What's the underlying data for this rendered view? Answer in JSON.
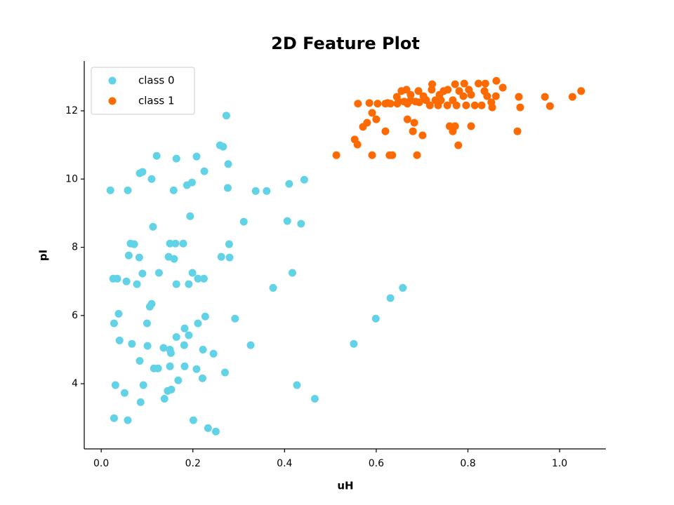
{
  "chart_data": {
    "type": "scatter",
    "title": "2D Feature Plot",
    "x_label": "uH",
    "y_label": "pI",
    "xlim": [
      -0.037,
      1.101
    ],
    "ylim": [
      2.09,
      13.46
    ],
    "xticks": [
      {
        "value": 0,
        "label": "0.0"
      },
      0.2,
      0.4,
      0.6,
      0.8,
      {
        "value": 1,
        "label": "1.0"
      }
    ],
    "yticks": [
      4,
      6,
      8,
      10,
      12
    ],
    "grid": false,
    "legend": "upper left",
    "series": [
      {
        "name": "class 0",
        "color": "#62d2e6",
        "x": [
          0.02,
          0.058,
          0.121,
          0.164,
          0.208,
          0.273,
          0.259,
          0.266,
          0.084,
          0.09,
          0.11,
          0.225,
          0.277,
          0.198,
          0.187,
          0.158,
          0.276,
          0.337,
          0.361,
          0.41,
          0.443,
          0.194,
          0.113,
          0.311,
          0.406,
          0.436,
          0.064,
          0.072,
          0.15,
          0.162,
          0.179,
          0.279,
          0.06,
          0.083,
          0.147,
          0.159,
          0.262,
          0.28,
          0.09,
          0.126,
          0.199,
          0.417,
          0.026,
          0.035,
          0.055,
          0.078,
          0.164,
          0.191,
          0.211,
          0.224,
          0.375,
          0.658,
          0.106,
          0.11,
          0.631,
          0.038,
          0.227,
          0.292,
          0.599,
          0.028,
          0.1,
          0.211,
          0.182,
          0.191,
          0.164,
          0.04,
          0.067,
          0.181,
          0.326,
          0.551,
          0.101,
          0.136,
          0.15,
          0.152,
          0.222,
          0.245,
          0.084,
          0.115,
          0.124,
          0.15,
          0.182,
          0.208,
          0.27,
          0.221,
          0.168,
          0.031,
          0.092,
          0.427,
          0.145,
          0.153,
          0.051,
          0.138,
          0.466,
          0.086,
          0.028,
          0.058,
          0.201,
          0.233,
          0.25
        ],
        "values": [
          9.67,
          9.67,
          10.68,
          10.6,
          10.66,
          11.86,
          10.99,
          10.95,
          10.17,
          10.21,
          10.0,
          10.23,
          10.44,
          9.9,
          9.82,
          9.67,
          9.74,
          9.65,
          9.65,
          9.86,
          9.98,
          8.91,
          8.6,
          8.75,
          8.77,
          8.69,
          8.11,
          8.09,
          8.11,
          8.11,
          8.11,
          8.09,
          7.76,
          7.7,
          7.72,
          7.66,
          7.72,
          7.7,
          7.23,
          7.25,
          7.25,
          7.25,
          7.08,
          7.08,
          7.0,
          6.92,
          6.92,
          6.92,
          7.08,
          7.08,
          6.81,
          6.81,
          6.26,
          6.34,
          6.51,
          6.05,
          5.97,
          5.91,
          5.91,
          5.77,
          5.77,
          5.77,
          5.62,
          5.42,
          5.37,
          5.27,
          5.17,
          5.13,
          5.13,
          5.17,
          5.11,
          5.05,
          5.0,
          4.9,
          5.0,
          4.88,
          4.67,
          4.45,
          4.45,
          4.51,
          4.51,
          4.43,
          4.33,
          4.16,
          4.1,
          3.96,
          3.96,
          3.96,
          3.79,
          3.83,
          3.73,
          3.56,
          3.56,
          3.46,
          2.99,
          2.93,
          2.93,
          2.7,
          2.6
        ]
      },
      {
        "name": "class 1",
        "color": "#ff6a00",
        "x": [
          0.513,
          0.559,
          0.553,
          0.591,
          0.629,
          0.635,
          0.689,
          0.779,
          0.571,
          0.58,
          0.591,
          0.6,
          0.62,
          0.668,
          0.683,
          0.68,
          0.701,
          0.76,
          0.767,
          0.772,
          0.807,
          0.908,
          0.56,
          0.585,
          0.603,
          0.62,
          0.625,
          0.646,
          0.668,
          0.694,
          0.717,
          0.735,
          0.755,
          0.775,
          0.796,
          0.815,
          0.83,
          0.853,
          0.914,
          0.979,
          0.645,
          0.655,
          0.666,
          0.675,
          0.692,
          0.703,
          0.721,
          0.722,
          0.738,
          0.747,
          0.756,
          0.781,
          0.79,
          0.802,
          0.807,
          0.823,
          0.838,
          0.836,
          0.842,
          0.861,
          0.862,
          0.876,
          0.911,
          0.968,
          1.028,
          1.047,
          0.792,
          0.772,
          0.686,
          0.661,
          0.709,
          0.729,
          0.767,
          0.631,
          0.741,
          0.649,
          0.675,
          0.851
        ],
        "values": [
          10.7,
          11.01,
          11.16,
          10.7,
          10.7,
          10.7,
          10.7,
          10.99,
          11.53,
          11.65,
          11.94,
          11.75,
          11.4,
          11.75,
          11.65,
          11.4,
          11.28,
          11.55,
          11.4,
          11.55,
          11.55,
          11.4,
          12.21,
          12.23,
          12.21,
          12.21,
          12.23,
          12.21,
          12.21,
          12.25,
          12.16,
          12.16,
          12.16,
          12.16,
          12.16,
          12.16,
          12.16,
          12.1,
          12.1,
          12.14,
          12.41,
          12.58,
          12.62,
          12.47,
          12.58,
          12.43,
          12.62,
          12.78,
          12.47,
          12.58,
          12.62,
          12.58,
          12.43,
          12.62,
          12.47,
          12.8,
          12.8,
          12.58,
          12.43,
          12.43,
          12.88,
          12.68,
          12.41,
          12.41,
          12.41,
          12.58,
          12.8,
          12.78,
          12.27,
          12.27,
          12.31,
          12.31,
          12.31,
          12.21,
          12.31,
          12.27,
          12.31,
          12.25
        ]
      }
    ]
  }
}
